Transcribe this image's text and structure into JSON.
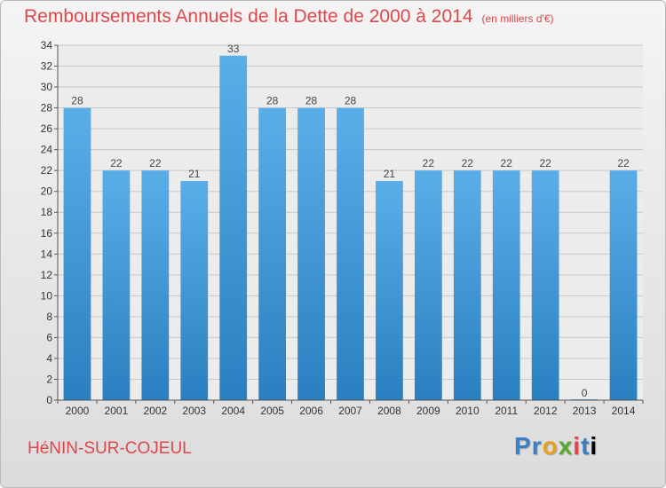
{
  "header": {
    "title": "Remboursements Annuels de la Dette de 2000 à 2014",
    "subtitle": "(en milliers d'€)"
  },
  "footer": {
    "commune": "HéNIN-SUR-COJEUL",
    "logo": "Proxiti"
  },
  "chart_data": {
    "type": "bar",
    "title": "Remboursements Annuels de la Dette de 2000 à 2014",
    "subtitle": "(en milliers d'€)",
    "categories": [
      "2000",
      "2001",
      "2002",
      "2003",
      "2004",
      "2005",
      "2006",
      "2007",
      "2008",
      "2009",
      "2010",
      "2011",
      "2012",
      "2013",
      "2014"
    ],
    "values": [
      28,
      22,
      22,
      21,
      33,
      28,
      28,
      28,
      21,
      22,
      22,
      22,
      22,
      0,
      22
    ],
    "ylim": [
      0,
      34
    ],
    "yticks": [
      0,
      2,
      4,
      6,
      8,
      10,
      12,
      14,
      16,
      18,
      20,
      22,
      24,
      26,
      28,
      30,
      32,
      34
    ],
    "grid": true,
    "bar_color": "#5aaee8",
    "bar_color_dark": "#2a7fc0",
    "label_color": "#444444"
  }
}
